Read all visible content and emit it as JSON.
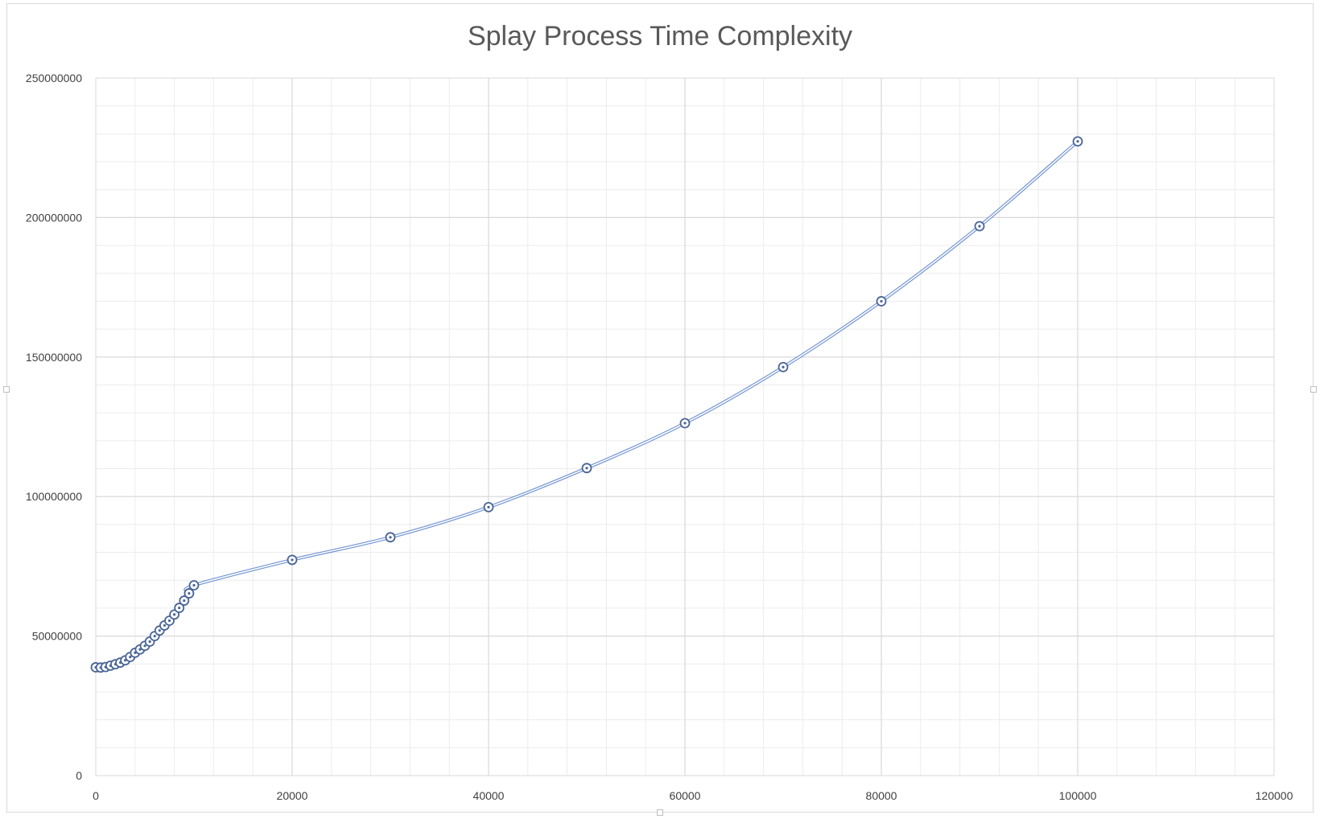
{
  "chart_data": {
    "type": "scatter",
    "title": "Splay Process Time Complexity",
    "xlabel": "",
    "ylabel": "",
    "xlim": [
      0,
      120000
    ],
    "ylim": [
      0,
      250000000
    ],
    "x_ticks": [
      "0",
      "20000",
      "40000",
      "60000",
      "80000",
      "100000",
      "120000"
    ],
    "y_ticks": [
      "0",
      "50000000",
      "100000000",
      "150000000",
      "200000000",
      "250000000"
    ],
    "grid": true,
    "minor_grid": true,
    "legend": "none",
    "marker": "circle-with-dot",
    "line": "smooth",
    "series": [
      {
        "x": [
          0,
          500,
          1000,
          1500,
          2000,
          2500,
          3000,
          3500,
          4000,
          4500,
          5000,
          5500,
          6000,
          6500,
          7000,
          7500,
          8000,
          8500,
          9000,
          9500,
          10000,
          20000,
          30000,
          40000,
          50000,
          60000,
          70000,
          80000,
          90000,
          100000
        ],
        "y": [
          38800000,
          38700000,
          38900000,
          39400000,
          39900000,
          40500000,
          41300000,
          42500000,
          44000000,
          45200000,
          46500000,
          48000000,
          50000000,
          52000000,
          53800000,
          55500000,
          57700000,
          60100000,
          62700000,
          65300000,
          68200000,
          77300000,
          85400000,
          96200000,
          110200000,
          126300000,
          146400000,
          170000000,
          196900000,
          227300000
        ]
      }
    ],
    "colors": {
      "series": "#4472c4",
      "marker": "#4a6596",
      "grid_major": "#d9d9d9",
      "grid_minor": "#ececec",
      "text": "#404040",
      "title": "#595959"
    }
  }
}
